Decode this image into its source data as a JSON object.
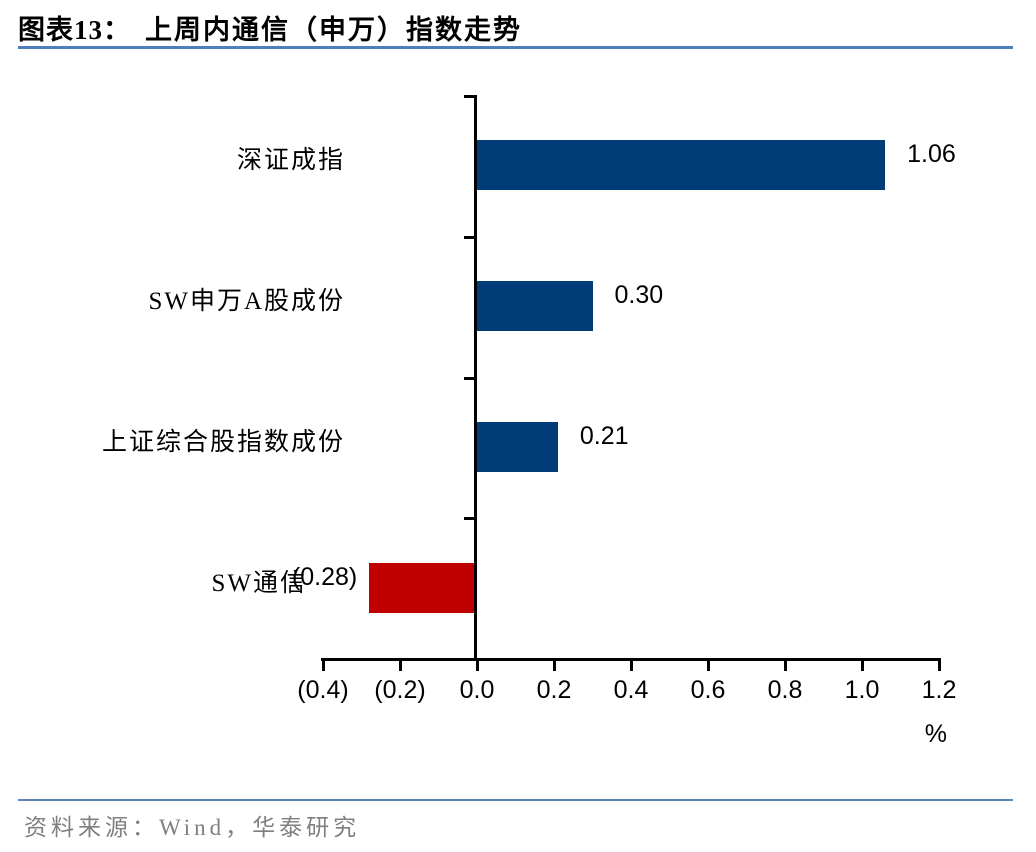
{
  "title": {
    "prefix": "图表13：",
    "text": "上周内通信（申万）指数走势"
  },
  "footer": {
    "source": "资料来源：Wind，华泰研究"
  },
  "colors": {
    "bar_positive": "#003C78",
    "bar_negative": "#C00000",
    "axis": "#000000",
    "title_rule": "#4F7EBD",
    "footer_rule": "#5B84BB",
    "footer_text": "#7F7F7F",
    "title_text": "#000000",
    "label_text": "#000000"
  },
  "chart_data": {
    "type": "bar",
    "orientation": "horizontal",
    "title": "上周内通信（申万）指数走势",
    "categories": [
      "深证成指",
      "SW申万A股成份",
      "上证综合股指数成份",
      "SW通信"
    ],
    "values": [
      1.06,
      0.3,
      0.21,
      -0.28
    ],
    "value_labels": [
      "1.06",
      "0.30",
      "0.21",
      "(0.28)"
    ],
    "xlabel": "%",
    "xlim": [
      -0.4,
      1.2
    ],
    "xticks": [
      {
        "label": "(0.4)",
        "value": -0.4
      },
      {
        "label": "(0.2)",
        "value": -0.2
      },
      {
        "label": "0.0",
        "value": 0.0
      },
      {
        "label": "0.2",
        "value": 0.2
      },
      {
        "label": "0.4",
        "value": 0.4
      },
      {
        "label": "0.6",
        "value": 0.6
      },
      {
        "label": "0.8",
        "value": 0.8
      },
      {
        "label": "1.0",
        "value": 1.0
      },
      {
        "label": "1.2",
        "value": 1.2
      }
    ],
    "grid": false,
    "legend": "none"
  }
}
